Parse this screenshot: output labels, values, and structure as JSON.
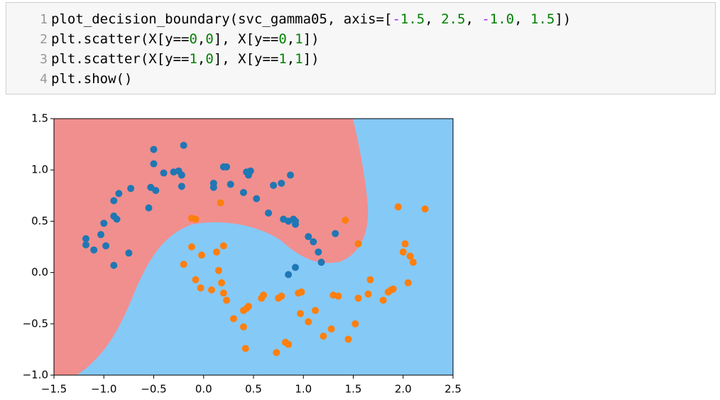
{
  "code": {
    "line_numbers": [
      "1",
      "2",
      "3",
      "4"
    ],
    "lines": [
      [
        "plot_decision_boundary(svc_gamma05, axis=[",
        "-",
        "1.5",
        ", ",
        "2.5",
        ", ",
        "-",
        "1.0",
        ", ",
        "1.5",
        "])"
      ],
      [
        "plt.scatter(X[y==",
        "0",
        ",",
        "0",
        "], X[y==",
        "0",
        ",",
        "1",
        "])"
      ],
      [
        "plt.scatter(X[y==",
        "1",
        ",",
        "0",
        "], X[y==",
        "1",
        ",",
        "1",
        "])"
      ],
      [
        "plt.show()"
      ]
    ]
  },
  "chart_data": {
    "type": "scatter",
    "xlim": [
      -1.5,
      2.5
    ],
    "ylim": [
      -1.0,
      1.5
    ],
    "xticks": [
      {
        "value": -1.5,
        "label": "−1.5"
      },
      {
        "value": -1.0,
        "label": "−1.0"
      },
      {
        "value": -0.5,
        "label": "−0.5"
      },
      {
        "value": 0,
        "label": "0.0"
      },
      0.5,
      {
        "value": 1,
        "label": "1.0"
      },
      1.5,
      {
        "value": 2,
        "label": "2.0"
      },
      2.5
    ],
    "yticks": [
      {
        "value": -1.0,
        "label": "−1.0"
      },
      {
        "value": -0.5,
        "label": "−0.5"
      },
      {
        "value": 0,
        "label": "0.0"
      },
      0.5,
      {
        "value": 1,
        "label": "1.0"
      },
      1.5
    ],
    "series": [
      {
        "color": "#1f77b4",
        "x": [
          -1.18,
          -1.18,
          -1.1,
          -1.03,
          -1.0,
          -0.98,
          -0.9,
          -0.87,
          -0.9,
          -0.85,
          -0.9,
          -0.73,
          -0.75,
          -0.55,
          -0.53,
          -0.48,
          -0.5,
          -0.5,
          -0.4,
          -0.3,
          -0.25,
          -0.22,
          -0.22,
          -0.2,
          0.1,
          0.1,
          0.2,
          0.23,
          0.27,
          0.4,
          0.43,
          0.47,
          0.45,
          0.53,
          0.65,
          0.7,
          0.78,
          0.87,
          0.8,
          0.85,
          0.9,
          0.92,
          0.92,
          1.05,
          1.1,
          1.15,
          1.18,
          0.85,
          0.92,
          1.32
        ],
        "y": [
          0.33,
          0.27,
          0.22,
          0.37,
          0.48,
          0.26,
          0.55,
          0.52,
          0.7,
          0.77,
          0.07,
          0.82,
          0.19,
          0.63,
          0.83,
          0.8,
          1.2,
          1.06,
          0.97,
          0.98,
          0.99,
          0.95,
          0.84,
          1.24,
          0.83,
          0.87,
          1.03,
          1.03,
          0.86,
          0.78,
          0.98,
          0.99,
          0.95,
          0.72,
          0.58,
          0.85,
          0.87,
          0.95,
          0.52,
          0.5,
          0.52,
          0.47,
          0.5,
          0.35,
          0.3,
          0.2,
          0.1,
          -0.02,
          0.05,
          0.38
        ]
      },
      {
        "color": "#ff7f0e",
        "x": [
          0.17,
          -0.12,
          -0.08,
          -0.12,
          -0.02,
          0.13,
          0.2,
          -0.2,
          -0.08,
          0.08,
          0.15,
          0.18,
          0.2,
          0.23,
          -0.03,
          0.3,
          0.4,
          0.43,
          0.45,
          0.4,
          0.42,
          0.58,
          0.6,
          0.75,
          0.73,
          0.82,
          0.85,
          0.78,
          0.98,
          0.95,
          0.97,
          1.05,
          1.12,
          1.2,
          1.28,
          1.3,
          1.35,
          1.45,
          1.52,
          1.55,
          1.55,
          1.42,
          1.65,
          1.67,
          1.8,
          1.85,
          1.9,
          1.95,
          2.0,
          2.02,
          2.05,
          2.07,
          2.1,
          2.22,
          1.88
        ],
        "y": [
          0.68,
          0.53,
          0.52,
          0.25,
          0.17,
          0.2,
          0.26,
          0.08,
          -0.07,
          -0.17,
          0.02,
          -0.1,
          -0.2,
          -0.27,
          -0.15,
          -0.45,
          -0.37,
          -0.35,
          -0.33,
          -0.53,
          -0.74,
          -0.25,
          -0.22,
          -0.25,
          -0.78,
          -0.68,
          -0.7,
          -0.23,
          -0.19,
          -0.2,
          -0.4,
          -0.48,
          -0.37,
          -0.62,
          -0.55,
          -0.22,
          -0.23,
          -0.65,
          -0.5,
          -0.25,
          0.28,
          0.51,
          -0.21,
          -0.07,
          -0.27,
          -0.19,
          -0.16,
          0.64,
          0.2,
          0.28,
          -0.1,
          0.16,
          0.1,
          0.62,
          -0.17
        ]
      }
    ]
  }
}
